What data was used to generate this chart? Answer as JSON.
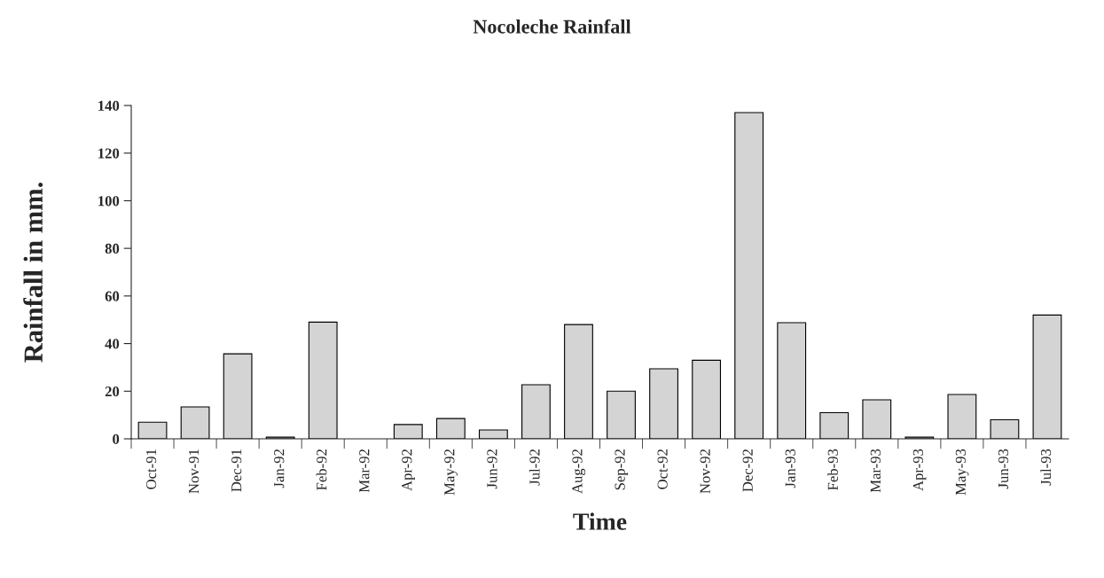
{
  "chart_data": {
    "type": "bar",
    "title": "Nocoleche Rainfall",
    "xlabel": "Time",
    "ylabel": "Rainfall in mm.",
    "categories": [
      "Oct-91",
      "Nov-91",
      "Dec-91",
      "Jan-92",
      "Feb-92",
      "Mar-92",
      "Apr-92",
      "May-92",
      "Jun-92",
      "Jul-92",
      "Aug-92",
      "Sep-92",
      "Oct-92",
      "Nov-92",
      "Dec-92",
      "Jan-93",
      "Feb-93",
      "Mar-93",
      "Apr-93",
      "May-93",
      "Jun-93",
      "Jul-93"
    ],
    "values": [
      7,
      13.4,
      35.7,
      0.7,
      49,
      0,
      6,
      8.5,
      3.7,
      22.7,
      48,
      20,
      29.4,
      33,
      137,
      48.8,
      11,
      16.4,
      0.7,
      18.6,
      8,
      52
    ],
    "color": "#d4d4d4",
    "ylim": [
      0,
      140
    ],
    "yticks": [
      0,
      20,
      40,
      60,
      80,
      100,
      120,
      140
    ],
    "grid": false
  }
}
